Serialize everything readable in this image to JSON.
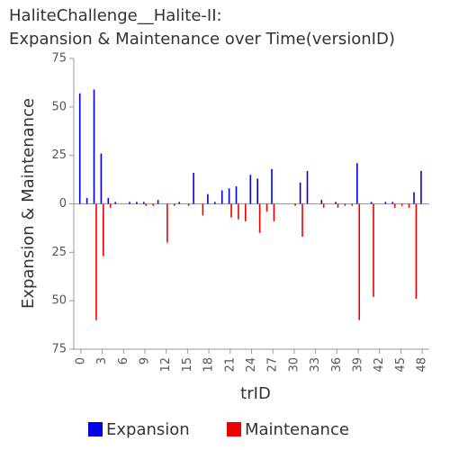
{
  "chart_data": {
    "type": "bar",
    "title": [
      "HaliteChallenge__Halite-II:",
      "Expansion & Maintenance over Time(versionID)"
    ],
    "xlabel": "trID",
    "ylabel": "Expansion & Maintenance",
    "x": [
      0,
      1,
      2,
      3,
      4,
      5,
      6,
      7,
      8,
      9,
      10,
      11,
      12,
      13,
      14,
      15,
      16,
      17,
      18,
      19,
      20,
      21,
      22,
      23,
      24,
      25,
      26,
      27,
      28,
      29,
      30,
      31,
      32,
      33,
      34,
      35,
      36,
      37,
      38,
      39,
      40,
      41,
      42,
      43,
      44,
      45,
      46,
      47,
      48
    ],
    "series": [
      {
        "name": "Expansion",
        "color": "#0000ee",
        "values": [
          57,
          3,
          59,
          26,
          3,
          1,
          0,
          1,
          1,
          1,
          0,
          2,
          0,
          0,
          1,
          0,
          16,
          0,
          5,
          1,
          7,
          8,
          9,
          0,
          15,
          13,
          0,
          18,
          0,
          0,
          0,
          11,
          17,
          0,
          2,
          0,
          1,
          0,
          0,
          21,
          0,
          1,
          0,
          1,
          1,
          0,
          0,
          6,
          17
        ]
      },
      {
        "name": "Maintenance",
        "color": "#ee0000",
        "values": [
          0,
          0,
          -60,
          -27,
          -2,
          0,
          0,
          0,
          0,
          -1,
          -1,
          0,
          -20,
          -1,
          0,
          -1,
          0,
          -6,
          0,
          0,
          0,
          -7,
          -8,
          -9,
          0,
          -15,
          -4,
          -9,
          0,
          0,
          -1,
          -17,
          0,
          0,
          -2,
          0,
          -2,
          -1,
          -1,
          -60,
          0,
          -48,
          0,
          0,
          -2,
          -1,
          -2,
          -49,
          0
        ]
      }
    ],
    "xlim": [
      -1,
      49
    ],
    "xticks": [
      0,
      3,
      6,
      9,
      12,
      15,
      18,
      21,
      24,
      27,
      30,
      33,
      36,
      39,
      42,
      45,
      48
    ],
    "ylim": [
      -75,
      75
    ],
    "yticks": [
      {
        "value": -75,
        "label": "75"
      },
      {
        "value": -50,
        "label": "50"
      },
      {
        "value": -25,
        "label": "25"
      },
      0,
      25,
      50,
      75
    ],
    "legend": "bottom"
  }
}
